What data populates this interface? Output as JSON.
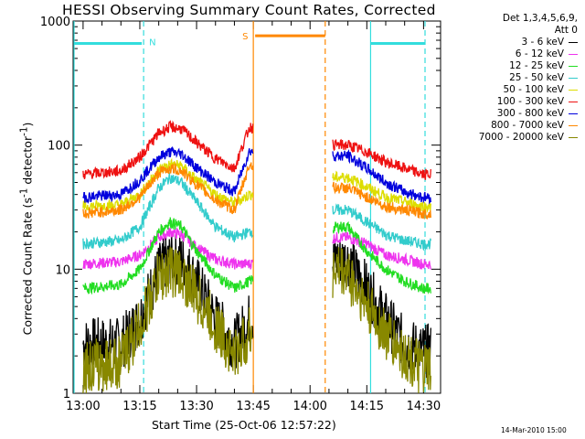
{
  "chart_data": {
    "type": "line",
    "title": "HESSI Observing Summary Count Rates, Corrected",
    "xlabel": "Start Time (25-Oct-06 12:57:22)",
    "ylabel_main": "Corrected Count Rate (s",
    "ylabel_sup1": "-1",
    "ylabel_mid": " detector",
    "ylabel_sup2": "-1",
    "ylabel_end": ")",
    "yscale": "log",
    "xlim": [
      "12:57:22",
      "14:34:30"
    ],
    "ylim": [
      1,
      1000
    ],
    "x_ticks": [
      "13:00",
      "13:15",
      "13:30",
      "13:45",
      "14:00",
      "14:15",
      "14:30"
    ],
    "y_ticks": [
      "1",
      "10",
      "100",
      "1000"
    ],
    "legend_header": [
      "Det 1,3,4,5,6,9,",
      "Att 0"
    ],
    "legend_position": "right",
    "data_gap": [
      "13:45",
      "14:06"
    ],
    "markers": [
      {
        "label": "N",
        "color": "#33dddd",
        "start": "13:16",
        "end": "14:16",
        "y": 660
      },
      {
        "label": "S",
        "color": "#ff8800",
        "start": "13:45",
        "end": "14:04",
        "y": 760
      }
    ],
    "series": [
      {
        "name": "3 - 6 keV",
        "color": "#000000",
        "x": [
          "13:00",
          "13:10",
          "13:15",
          "13:20",
          "13:23",
          "13:26",
          "13:30",
          "13:35",
          "13:40",
          "13:44",
          "14:07",
          "14:10",
          "14:15",
          "14:20",
          "14:25",
          "14:30",
          "14:32"
        ],
        "y": [
          2.5,
          2.5,
          4,
          10,
          12,
          12,
          8,
          4,
          2.5,
          4,
          12,
          12,
          7,
          4,
          2.5,
          2.2,
          2.2
        ]
      },
      {
        "name": "6 - 12 keV",
        "color": "#ee33ee",
        "x": [
          "13:00",
          "13:10",
          "13:15",
          "13:20",
          "13:23",
          "13:26",
          "13:30",
          "13:35",
          "13:40",
          "13:44",
          "14:07",
          "14:10",
          "14:15",
          "14:20",
          "14:25",
          "14:30",
          "14:32"
        ],
        "y": [
          11,
          11.5,
          13,
          18,
          20,
          19,
          15,
          12,
          11,
          11,
          18,
          18,
          16,
          13,
          12,
          11,
          11
        ]
      },
      {
        "name": "12 - 25 keV",
        "color": "#22dd22",
        "x": [
          "13:00",
          "13:10",
          "13:15",
          "13:20",
          "13:23",
          "13:26",
          "13:30",
          "13:35",
          "13:40",
          "13:44",
          "14:07",
          "14:10",
          "14:15",
          "14:20",
          "14:25",
          "14:30",
          "14:32"
        ],
        "y": [
          7,
          7.5,
          10,
          20,
          24,
          22,
          14,
          9,
          7,
          8,
          22,
          22,
          14,
          10,
          8,
          7,
          7
        ]
      },
      {
        "name": "25 - 50 keV",
        "color": "#33cccc",
        "x": [
          "13:00",
          "13:10",
          "13:15",
          "13:20",
          "13:23",
          "13:26",
          "13:30",
          "13:35",
          "13:40",
          "13:44",
          "14:07",
          "14:10",
          "14:15",
          "14:20",
          "14:25",
          "14:30",
          "14:32"
        ],
        "y": [
          16,
          17,
          22,
          45,
          55,
          50,
          35,
          22,
          18,
          20,
          30,
          30,
          24,
          19,
          17,
          16,
          16
        ]
      },
      {
        "name": "50 - 100 keV",
        "color": "#dddd00",
        "x": [
          "13:00",
          "13:10",
          "13:15",
          "13:20",
          "13:23",
          "13:26",
          "13:30",
          "13:35",
          "13:40",
          "13:44",
          "14:07",
          "14:10",
          "14:15",
          "14:20",
          "14:25",
          "14:30",
          "14:32"
        ],
        "y": [
          32,
          33,
          40,
          63,
          70,
          68,
          52,
          40,
          34,
          40,
          55,
          55,
          46,
          38,
          35,
          32,
          32
        ]
      },
      {
        "name": "100 - 300 keV",
        "color": "#ee1111",
        "x": [
          "13:00",
          "13:10",
          "13:15",
          "13:20",
          "13:23",
          "13:26",
          "13:30",
          "13:35",
          "13:40",
          "13:44",
          "14:07",
          "14:10",
          "14:15",
          "14:20",
          "14:25",
          "14:30",
          "14:32"
        ],
        "y": [
          58,
          62,
          80,
          125,
          140,
          135,
          105,
          78,
          65,
          140,
          100,
          100,
          88,
          73,
          65,
          58,
          58
        ]
      },
      {
        "name": "300 - 800 keV",
        "color": "#0000dd",
        "x": [
          "13:00",
          "13:10",
          "13:15",
          "13:20",
          "13:23",
          "13:26",
          "13:30",
          "13:35",
          "13:40",
          "13:44",
          "14:07",
          "14:10",
          "14:15",
          "14:20",
          "14:25",
          "14:30",
          "14:32"
        ],
        "y": [
          38,
          40,
          52,
          80,
          88,
          85,
          66,
          50,
          42,
          90,
          82,
          82,
          65,
          50,
          42,
          38,
          38
        ]
      },
      {
        "name": "800 - 7000 keV",
        "color": "#ff8800",
        "x": [
          "13:00",
          "13:10",
          "13:15",
          "13:20",
          "13:23",
          "13:26",
          "13:30",
          "13:35",
          "13:40",
          "13:44",
          "14:07",
          "14:10",
          "14:15",
          "14:20",
          "14:25",
          "14:30",
          "14:32"
        ],
        "y": [
          28,
          30,
          38,
          60,
          65,
          62,
          48,
          36,
          30,
          70,
          45,
          45,
          38,
          32,
          30,
          28,
          28
        ]
      },
      {
        "name": "7000 - 20000 keV",
        "color": "#888800",
        "x": [
          "13:00",
          "13:10",
          "13:15",
          "13:20",
          "13:23",
          "13:26",
          "13:30",
          "13:35",
          "13:40",
          "13:44",
          "14:07",
          "14:10",
          "14:15",
          "14:20",
          "14:25",
          "14:30",
          "14:32"
        ],
        "y": [
          1.6,
          1.8,
          3.5,
          8.5,
          10,
          9,
          6,
          3.5,
          2,
          3,
          10,
          9,
          5,
          3,
          2,
          1.5,
          1.5
        ]
      }
    ]
  },
  "footer_stamp": "14-Mar-2010 15:00"
}
